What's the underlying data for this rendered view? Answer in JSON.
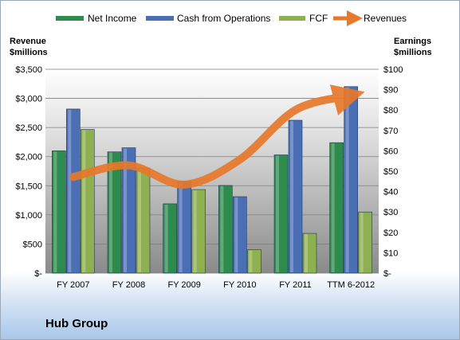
{
  "chart_data": {
    "type": "bar",
    "title": "Hub Group",
    "categories": [
      "FY 2007",
      "FY 2008",
      "FY 2009",
      "FY 2010",
      "FY 2011",
      "TTM 6-2012"
    ],
    "series": [
      {
        "name": "Net Income",
        "axis": "right",
        "color": "#2e8b4e",
        "values": [
          60,
          59.5,
          34,
          43,
          58,
          64
        ]
      },
      {
        "name": "Cash from Operations",
        "axis": "right",
        "color": "#4a6fb5",
        "values": [
          80.5,
          61.5,
          45,
          37.5,
          75,
          91.5
        ]
      },
      {
        "name": "FCF",
        "axis": "right",
        "color": "#8fb050",
        "values": [
          70.5,
          51.5,
          41,
          11.5,
          19.5,
          30
        ]
      },
      {
        "name": "Revenues",
        "axis": "left",
        "type": "line",
        "color": "#e8782a",
        "values": [
          1650,
          1850,
          1520,
          1950,
          2800,
          3050
        ]
      }
    ],
    "left_axis": {
      "title_line1": "Revenue",
      "title_line2": "$millions",
      "ylim": [
        0,
        3500
      ],
      "ticks": [
        "$-",
        "$500",
        "$1,000",
        "$1,500",
        "$2,000",
        "$2,500",
        "$3,000",
        "$3,500"
      ]
    },
    "right_axis": {
      "title_line1": "Earnings",
      "title_line2": "$millions",
      "ylim": [
        0,
        100
      ],
      "ticks": [
        "$-",
        "$10",
        "$20",
        "$30",
        "$40",
        "$50",
        "$60",
        "$70",
        "$80",
        "$90",
        "$100"
      ]
    },
    "legend_position": "top",
    "grid": true
  }
}
